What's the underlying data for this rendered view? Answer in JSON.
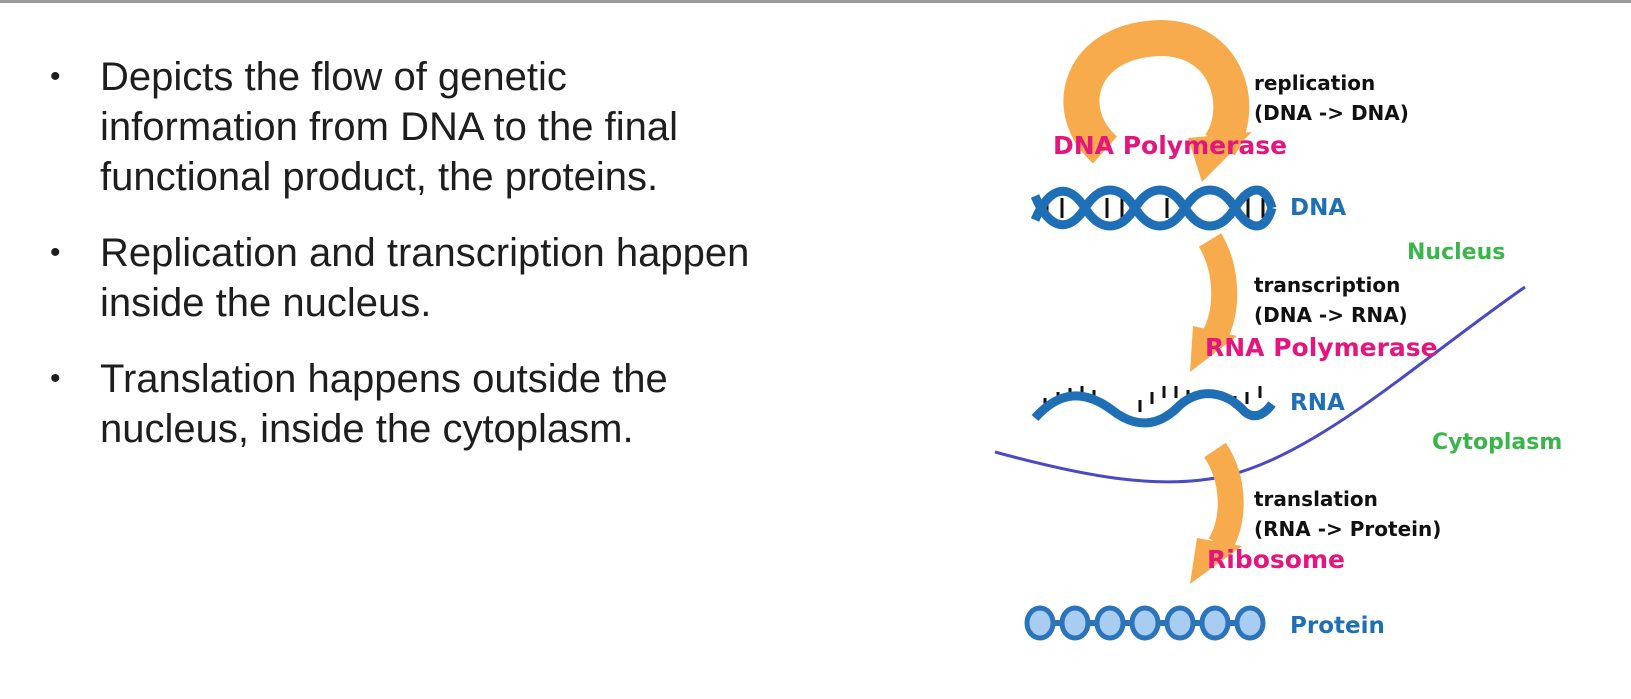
{
  "bullets": [
    {
      "line1": "Depicts the flow of genetic",
      "line2": "information from DNA to the final",
      "line3": "functional product, the proteins."
    },
    {
      "line1": "Replication and transcription happen",
      "line2": "inside the nucleus.",
      "line3": ""
    },
    {
      "line1": "Translation happens outside the",
      "line2": "nucleus, inside the cytoplasm.",
      "line3": ""
    }
  ],
  "bullet_glyph": "•",
  "diagram": {
    "replication": {
      "label": "replication",
      "detail": "(DNA -> DNA)",
      "enzyme": "DNA Polymerase"
    },
    "transcription": {
      "label": "transcription",
      "detail": "(DNA -> RNA)",
      "enzyme": "RNA Polymerase"
    },
    "translation": {
      "label": "translation",
      "detail": "(RNA -> Protein)",
      "enzyme": "Ribosome"
    },
    "molecules": {
      "dna": "DNA",
      "rna": "RNA",
      "protein": "Protein"
    },
    "regions": {
      "nucleus": "Nucleus",
      "cytoplasm": "Cytoplasm"
    }
  },
  "colors": {
    "arrow": "#f7ab4d",
    "enzyme_text": "#e5157e",
    "molecule_blue": "#1e6fb5",
    "region_green": "#3ab54a",
    "membrane": "#4a4ac4",
    "protein_bead": "#2b73bb"
  }
}
